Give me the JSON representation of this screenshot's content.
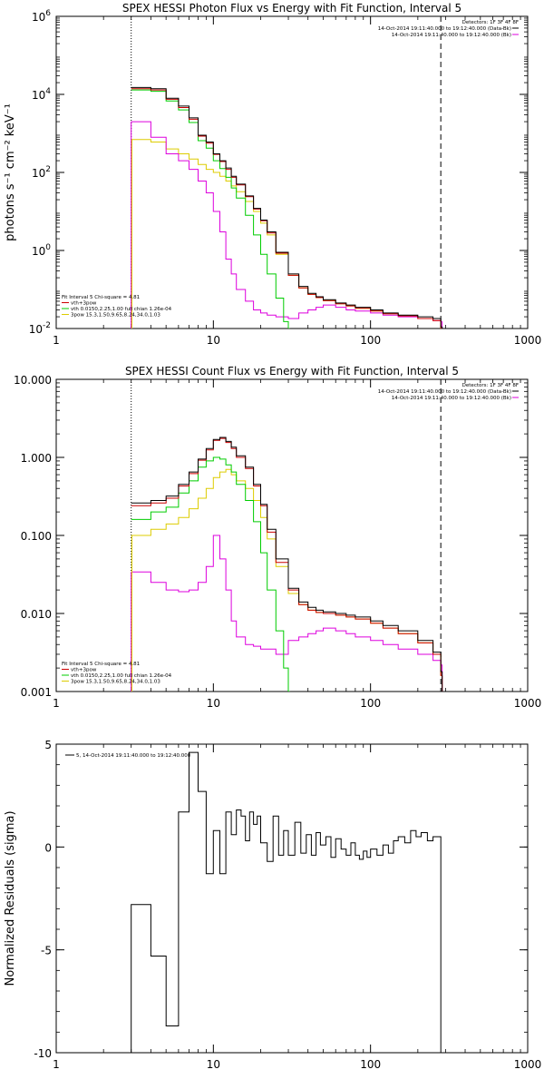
{
  "chart_data": [
    {
      "type": "line",
      "title": "SPEX HESSI Photon Flux vs Energy with Fit Function, Interval 5",
      "ylabel": "photons s⁻¹ cm⁻² keV⁻¹",
      "x_scale": "log",
      "y_scale": "log",
      "xlim": [
        1,
        1000
      ],
      "ylim": [
        0.01,
        1000000
      ],
      "xticks": [
        "1",
        "10",
        "100",
        "1000"
      ],
      "yticks": [
        {
          "v": 0.01,
          "base": "10",
          "exp": "-2"
        },
        {
          "v": 1,
          "base": "10",
          "exp": "0"
        },
        {
          "v": 100,
          "base": "10",
          "exp": "2"
        },
        {
          "v": 10000,
          "base": "10",
          "exp": "4"
        },
        {
          "v": 1000000,
          "base": "10",
          "exp": "6"
        }
      ],
      "vlines": [
        {
          "x": 3,
          "style": "dotted"
        },
        {
          "x": 280,
          "style": "dashed"
        }
      ],
      "header": [
        "Detectors: 1F 3F 4F 8F",
        "14-Oct-2014 19:11:40.000 to 19:12:40.000 (Data-Bk)",
        "14-Oct-2014 19:11:40.000 to 19:12:40.000 (Bk)"
      ],
      "legend": [
        "Fit Interval 5   Chi-square = 4.81",
        "vth+3pow",
        "vth 0.0150,2.25,1.00  full chian 1.26e-04",
        "3pow 15.3,1.50,9.65,8.24,34.0,1.03"
      ],
      "series": [
        {
          "name": "14-Oct-2014 19:11:40.000 to 19:12:40.000 (Data-Bk)",
          "color": "#000000",
          "x": [
            3,
            4,
            5,
            6,
            7,
            8,
            9,
            10,
            11,
            12,
            13,
            14,
            16,
            18,
            20,
            22,
            25,
            30,
            35,
            40,
            45,
            50,
            60,
            70,
            80,
            100,
            120,
            150,
            200,
            250,
            280
          ],
          "y": [
            15000,
            14000,
            8000,
            5000,
            2500,
            900,
            600,
            300,
            200,
            130,
            80,
            50,
            25,
            12,
            6,
            3,
            0.9,
            0.25,
            0.12,
            0.08,
            0.065,
            0.055,
            0.045,
            0.04,
            0.035,
            0.03,
            0.025,
            0.022,
            0.02,
            0.018,
            0.011
          ]
        },
        {
          "name": "vth+3pow",
          "color": "#cc0000",
          "x": [
            3,
            4,
            5,
            6,
            7,
            8,
            9,
            10,
            11,
            12,
            13,
            14,
            16,
            18,
            20,
            22,
            25,
            30,
            35,
            40,
            45,
            50,
            60,
            70,
            80,
            100,
            120,
            150,
            200,
            250,
            280
          ],
          "y": [
            14000,
            13000,
            7500,
            4600,
            2300,
            850,
            560,
            290,
            190,
            120,
            75,
            48,
            24,
            11.5,
            5.8,
            2.8,
            0.85,
            0.23,
            0.11,
            0.075,
            0.062,
            0.052,
            0.043,
            0.038,
            0.033,
            0.028,
            0.024,
            0.021,
            0.018,
            0.016,
            0.01
          ]
        },
        {
          "name": "vth 0.0150,2.25,1.00  full chian 1.26e-04",
          "color": "#00cc00",
          "x": [
            3,
            4,
            5,
            6,
            7,
            8,
            9,
            10,
            11,
            12,
            13,
            14,
            16,
            18,
            20,
            22,
            25,
            28,
            30
          ],
          "y": [
            13000,
            12000,
            6800,
            4000,
            1900,
            650,
            420,
            200,
            125,
            75,
            40,
            22,
            8,
            2.5,
            0.8,
            0.25,
            0.06,
            0.015,
            0.01
          ]
        },
        {
          "name": "3pow 15.3,1.50,9.65,8.24,34.0,1.03",
          "color": "#ddcc00",
          "x": [
            3,
            4,
            5,
            6,
            7,
            8,
            9,
            10,
            11,
            12,
            13,
            14,
            16,
            18,
            20,
            22,
            25,
            30,
            35,
            40,
            45,
            50,
            60,
            70,
            80,
            100,
            120,
            150,
            200,
            250,
            280
          ],
          "y": [
            700,
            600,
            400,
            300,
            220,
            160,
            120,
            100,
            80,
            60,
            45,
            32,
            18,
            10,
            5,
            2.5,
            0.8,
            0.23,
            0.11,
            0.075,
            0.062,
            0.052,
            0.043,
            0.038,
            0.033,
            0.028,
            0.024,
            0.021,
            0.018,
            0.016,
            0.01
          ]
        },
        {
          "name": "14-Oct-2014 19:11:40.000 to 19:12:40.000 (Bk)",
          "color": "#dd00dd",
          "x": [
            3,
            4,
            5,
            6,
            7,
            8,
            9,
            10,
            11,
            12,
            13,
            14,
            16,
            18,
            20,
            22,
            25,
            30,
            35,
            40,
            45,
            50,
            60,
            70,
            80,
            100,
            120,
            150,
            200,
            250,
            280
          ],
          "y": [
            2000,
            800,
            300,
            200,
            120,
            60,
            30,
            10,
            3,
            0.6,
            0.25,
            0.1,
            0.05,
            0.03,
            0.025,
            0.022,
            0.02,
            0.018,
            0.025,
            0.03,
            0.035,
            0.04,
            0.035,
            0.03,
            0.028,
            0.025,
            0.022,
            0.02,
            0.018,
            0.016,
            0.015
          ]
        }
      ]
    },
    {
      "type": "line",
      "title": "SPEX HESSI Count Flux vs Energy with Fit Function, Interval 5",
      "x_scale": "log",
      "y_scale": "log",
      "xlim": [
        1,
        1000
      ],
      "ylim": [
        0.001,
        10
      ],
      "xticks": [
        "1",
        "10",
        "100",
        "1000"
      ],
      "yticks": [
        {
          "v": 0.001,
          "label": "0.001"
        },
        {
          "v": 0.01,
          "label": "0.010"
        },
        {
          "v": 0.1,
          "label": "0.100"
        },
        {
          "v": 1,
          "label": "1.000"
        },
        {
          "v": 10,
          "label": "10.000"
        }
      ],
      "vlines": [
        {
          "x": 3,
          "style": "dotted"
        },
        {
          "x": 280,
          "style": "dashed"
        }
      ],
      "header": [
        "Detectors: 1F 3F 4F 8F",
        "14-Oct-2014 19:11:40.000 to 19:12:40.000 (Data-Bk)",
        "14-Oct-2014 19:11:40.000 to 19:12:40.000 (Bk)"
      ],
      "legend": [
        "Fit Interval 5   Chi-square = 4.81",
        "vth+3pow",
        "vth 0.0150,2.25,1.00  full chian 1.26e-04",
        "3pow 15.3,1.50,9.65,8.24,34.0,1.03"
      ],
      "series": [
        {
          "name": "14-Oct-2014 19:11:40.000 to 19:12:40.000 (Data-Bk)",
          "color": "#000000",
          "x": [
            3,
            4,
            5,
            6,
            7,
            8,
            9,
            10,
            11,
            12,
            13,
            14,
            16,
            18,
            20,
            22,
            25,
            30,
            35,
            40,
            45,
            50,
            60,
            70,
            80,
            100,
            120,
            150,
            200,
            250,
            280
          ],
          "y": [
            0.26,
            0.28,
            0.32,
            0.45,
            0.65,
            0.95,
            1.3,
            1.7,
            1.8,
            1.6,
            1.35,
            1.05,
            0.75,
            0.45,
            0.25,
            0.12,
            0.05,
            0.021,
            0.014,
            0.012,
            0.011,
            0.0105,
            0.01,
            0.0095,
            0.009,
            0.008,
            0.007,
            0.006,
            0.0045,
            0.0032,
            0.0018
          ]
        },
        {
          "name": "vth+3pow",
          "color": "#cc0000",
          "x": [
            3,
            4,
            5,
            6,
            7,
            8,
            9,
            10,
            11,
            12,
            13,
            14,
            16,
            18,
            20,
            22,
            25,
            30,
            35,
            40,
            45,
            50,
            60,
            70,
            80,
            100,
            120,
            150,
            200,
            250,
            280
          ],
          "y": [
            0.24,
            0.26,
            0.3,
            0.43,
            0.62,
            0.92,
            1.25,
            1.65,
            1.75,
            1.55,
            1.3,
            1.0,
            0.72,
            0.43,
            0.24,
            0.11,
            0.045,
            0.02,
            0.013,
            0.011,
            0.0103,
            0.01,
            0.0095,
            0.009,
            0.0085,
            0.0075,
            0.0065,
            0.0055,
            0.0042,
            0.003,
            0.0016
          ]
        },
        {
          "name": "vth 0.0150,2.25,1.00  full chian 1.26e-04",
          "color": "#00cc00",
          "x": [
            3,
            4,
            5,
            6,
            7,
            8,
            9,
            10,
            11,
            12,
            13,
            14,
            16,
            18,
            20,
            22,
            25,
            28,
            30
          ],
          "y": [
            0.16,
            0.2,
            0.23,
            0.35,
            0.5,
            0.75,
            0.9,
            1.0,
            0.95,
            0.8,
            0.65,
            0.45,
            0.28,
            0.15,
            0.06,
            0.02,
            0.006,
            0.002,
            0.001
          ]
        },
        {
          "name": "3pow 15.3,1.50,9.65,8.24,34.0,1.03",
          "color": "#ddcc00",
          "x": [
            3,
            4,
            5,
            6,
            7,
            8,
            9,
            10,
            11,
            12,
            13,
            14,
            16,
            18,
            20,
            22,
            25,
            30,
            35,
            40,
            45,
            50,
            60,
            70,
            80,
            100,
            120,
            150,
            200,
            250,
            280
          ],
          "y": [
            0.1,
            0.12,
            0.14,
            0.17,
            0.22,
            0.3,
            0.4,
            0.55,
            0.65,
            0.7,
            0.6,
            0.5,
            0.4,
            0.28,
            0.17,
            0.09,
            0.04,
            0.018,
            0.013,
            0.011,
            0.0103,
            0.01,
            0.0095,
            0.009,
            0.0085,
            0.0075,
            0.0065,
            0.0055,
            0.0042,
            0.003,
            0.0016
          ]
        },
        {
          "name": "14-Oct-2014 19:11:40.000 to 19:12:40.000 (Bk)",
          "color": "#dd00dd",
          "x": [
            3,
            4,
            5,
            6,
            7,
            8,
            9,
            10,
            11,
            12,
            13,
            14,
            16,
            18,
            20,
            22,
            25,
            30,
            35,
            40,
            45,
            50,
            60,
            70,
            80,
            100,
            120,
            150,
            200,
            250,
            280
          ],
          "y": [
            0.034,
            0.025,
            0.02,
            0.019,
            0.02,
            0.025,
            0.04,
            0.1,
            0.05,
            0.02,
            0.008,
            0.005,
            0.004,
            0.0038,
            0.0035,
            0.0035,
            0.003,
            0.0045,
            0.005,
            0.0055,
            0.006,
            0.0065,
            0.006,
            0.0055,
            0.005,
            0.0045,
            0.004,
            0.0035,
            0.003,
            0.0025,
            0.0022
          ]
        }
      ]
    },
    {
      "type": "line",
      "ylabel": "Normalized Residuals (sigma)",
      "x_scale": "log",
      "y_scale": "linear",
      "xlim": [
        1,
        1000
      ],
      "ylim": [
        -10,
        5
      ],
      "xticks": [
        "1",
        "10",
        "100",
        "1000"
      ],
      "yticks": [
        {
          "v": -10,
          "label": "-10"
        },
        {
          "v": -5,
          "label": "-5"
        },
        {
          "v": 0,
          "label": "0"
        },
        {
          "v": 5,
          "label": "5"
        }
      ],
      "legend_entry": "5, 14-Oct-2014 19:11:40.000 to 19:12:40.000",
      "series": [
        {
          "name": "5, 14-Oct-2014 19:11:40.000 to 19:12:40.000",
          "color": "#000000",
          "edges": [
            3,
            4,
            5,
            6,
            7,
            8,
            9,
            10,
            11,
            12,
            13,
            14,
            15,
            16,
            17,
            18,
            19,
            20,
            22,
            24,
            26,
            28,
            30,
            33,
            36,
            39,
            42,
            45,
            48,
            52,
            56,
            60,
            65,
            70,
            75,
            80,
            85,
            90,
            95,
            100,
            110,
            120,
            130,
            140,
            150,
            165,
            180,
            195,
            210,
            230,
            250,
            280
          ],
          "values": [
            -2.8,
            -5.3,
            -8.7,
            1.7,
            4.6,
            2.7,
            -1.3,
            0.8,
            -1.3,
            1.7,
            0.6,
            1.8,
            1.5,
            0.3,
            1.7,
            1.1,
            1.5,
            0.2,
            -0.7,
            1.5,
            -0.4,
            0.8,
            -0.4,
            1.2,
            -0.3,
            0.6,
            -0.4,
            0.7,
            0.1,
            0.5,
            -0.5,
            0.4,
            -0.1,
            -0.4,
            0.2,
            -0.4,
            -0.6,
            -0.2,
            -0.5,
            -0.1,
            -0.4,
            0.1,
            -0.3,
            0.3,
            0.5,
            0.2,
            0.8,
            0.5,
            0.7,
            0.3,
            0.5
          ]
        }
      ]
    }
  ]
}
